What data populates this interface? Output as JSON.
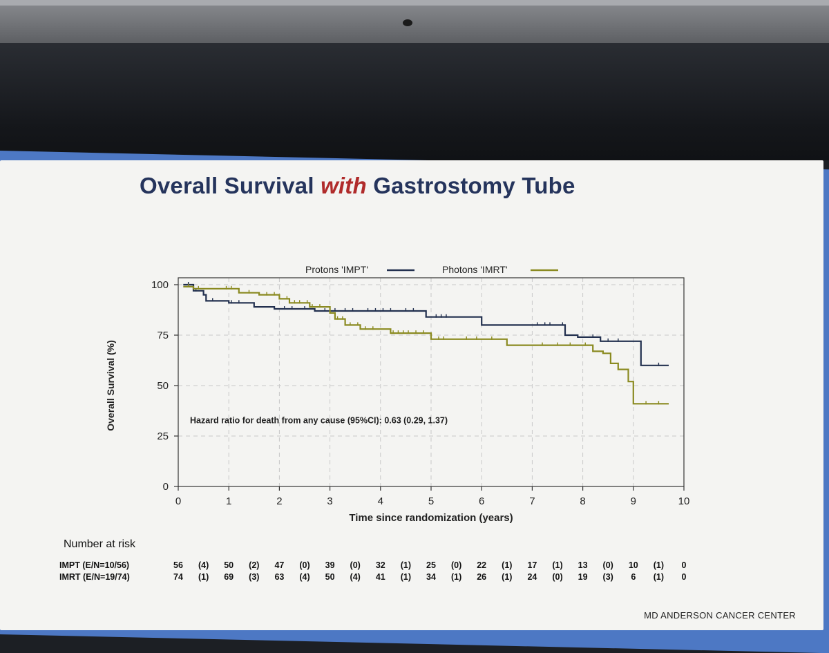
{
  "slide": {
    "title_prefix": "Overall Survival ",
    "title_emphasis": "with",
    "title_suffix": " Gastrostomy Tube",
    "footer": "MD ANDERSON CANCER CENTER"
  },
  "colors": {
    "impt": "#22304f",
    "imrt": "#8a8a20",
    "title": "#25345c",
    "emphasis": "#b02b2b",
    "frame": "#4d78c4"
  },
  "chart_data": {
    "type": "line",
    "xlabel": "Time since randomization (years)",
    "ylabel": "Overall Survival (%)",
    "xlim": [
      0,
      10
    ],
    "ylim": [
      0,
      100
    ],
    "xticks": [
      0,
      1,
      2,
      3,
      4,
      5,
      6,
      7,
      8,
      9,
      10
    ],
    "yticks": [
      0,
      25,
      50,
      75,
      100
    ],
    "grid": "dashed",
    "legend_position": "top",
    "annotation": "Hazard ratio for death from any cause (95%CI): 0.63 (0.29, 1.37)",
    "series": [
      {
        "name": "Protons 'IMPT'",
        "step": [
          [
            0.1,
            100
          ],
          [
            0.3,
            97
          ],
          [
            0.5,
            95
          ],
          [
            0.55,
            92
          ],
          [
            1.0,
            91
          ],
          [
            1.5,
            89
          ],
          [
            1.9,
            88
          ],
          [
            2.7,
            87
          ],
          [
            4.8,
            87
          ],
          [
            4.9,
            84
          ],
          [
            5.7,
            84
          ],
          [
            6.0,
            80
          ],
          [
            7.5,
            80
          ],
          [
            7.65,
            75
          ],
          [
            7.9,
            74
          ],
          [
            8.3,
            74
          ],
          [
            8.35,
            72
          ],
          [
            9.1,
            72
          ],
          [
            9.15,
            60
          ],
          [
            9.7,
            60
          ]
        ],
        "censor_x": [
          0.2,
          0.35,
          0.68,
          1.05,
          1.2,
          2.1,
          2.25,
          2.5,
          2.9,
          3.1,
          3.3,
          3.45,
          3.75,
          3.9,
          4.05,
          4.2,
          4.5,
          4.65,
          5.1,
          5.2,
          5.3,
          7.1,
          7.25,
          7.35,
          7.6,
          8.2,
          8.5,
          8.7,
          9.5
        ]
      },
      {
        "name": "Photons 'IMRT'",
        "step": [
          [
            0.1,
            99
          ],
          [
            0.3,
            98
          ],
          [
            1.2,
            96
          ],
          [
            1.6,
            95
          ],
          [
            2.0,
            93
          ],
          [
            2.2,
            91
          ],
          [
            2.6,
            89
          ],
          [
            3.0,
            86
          ],
          [
            3.1,
            83
          ],
          [
            3.3,
            80
          ],
          [
            3.6,
            78
          ],
          [
            4.15,
            78
          ],
          [
            4.2,
            76
          ],
          [
            4.9,
            76
          ],
          [
            5.0,
            73
          ],
          [
            6.4,
            73
          ],
          [
            6.5,
            70
          ],
          [
            8.1,
            70
          ],
          [
            8.2,
            67
          ],
          [
            8.4,
            66
          ],
          [
            8.55,
            61
          ],
          [
            8.7,
            58
          ],
          [
            8.9,
            52
          ],
          [
            9.0,
            41
          ],
          [
            9.7,
            41
          ]
        ],
        "censor_x": [
          0.2,
          0.4,
          0.95,
          1.05,
          1.4,
          1.75,
          1.9,
          2.15,
          2.3,
          2.4,
          2.55,
          2.65,
          2.8,
          3.15,
          3.25,
          3.4,
          3.55,
          3.7,
          3.85,
          4.25,
          4.35,
          4.45,
          4.55,
          4.7,
          4.85,
          5.15,
          5.25,
          5.7,
          5.9,
          6.2,
          7.2,
          7.5,
          7.75,
          8.05,
          8.7,
          9.25,
          9.5
        ]
      }
    ],
    "risk_table": {
      "title": "Number at risk",
      "rows": [
        {
          "label": "IMPT (E/N=10/56)",
          "at_risk": [
            "56",
            "50",
            "47",
            "39",
            "32",
            "25",
            "22",
            "17",
            "13",
            "10",
            "0"
          ],
          "events": [
            "(4)",
            "(2)",
            "(0)",
            "(0)",
            "(1)",
            "(0)",
            "(1)",
            "(1)",
            "(0)",
            "(1)"
          ]
        },
        {
          "label": "IMRT (E/N=19/74)",
          "at_risk": [
            "74",
            "69",
            "63",
            "50",
            "41",
            "34",
            "26",
            "24",
            "19",
            "6",
            "0"
          ],
          "events": [
            "(1)",
            "(3)",
            "(4)",
            "(4)",
            "(1)",
            "(1)",
            "(1)",
            "(0)",
            "(3)",
            "(1)"
          ]
        }
      ]
    }
  }
}
